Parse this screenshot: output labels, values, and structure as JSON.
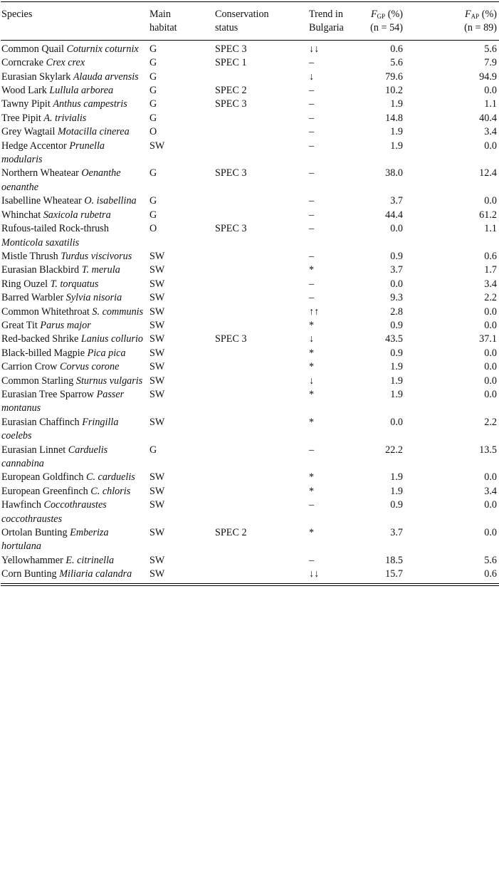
{
  "table": {
    "header": {
      "species": "Species",
      "habitat": [
        "Main",
        "habitat"
      ],
      "status": [
        "Conservation",
        "status"
      ],
      "trend": [
        "Trend in",
        "Bulgaria"
      ],
      "fgp": {
        "symbol": "F",
        "subscript": "GP",
        "unit": "(%)",
        "sample": "(n = 54)"
      },
      "fap": {
        "symbol": "F",
        "subscript": "AP",
        "unit": "(%)",
        "sample": "(n = 89)"
      }
    },
    "rows": [
      {
        "common": "Common Quail",
        "latin": "Coturnix coturnix",
        "habitat": "G",
        "status": "SPEC 3",
        "trend": "↓↓",
        "fgp": "0.6",
        "fap": "5.6"
      },
      {
        "common": "Corncrake",
        "latin": "Crex crex",
        "habitat": "G",
        "status": "SPEC 1",
        "trend": "–",
        "fgp": "5.6",
        "fap": "7.9"
      },
      {
        "common": "Eurasian Skylark",
        "latin": "Alauda arvensis",
        "habitat": "G",
        "status": null,
        "trend": "↓",
        "fgp": "79.6",
        "fap": "94.9"
      },
      {
        "common": "Wood Lark",
        "latin": "Lullula arborea",
        "habitat": "G",
        "status": "SPEC 2",
        "trend": "–",
        "fgp": "10.2",
        "fap": "0.0"
      },
      {
        "common": "Tawny Pipit",
        "latin": "Anthus campestris",
        "habitat": "G",
        "status": "SPEC 3",
        "trend": "–",
        "fgp": "1.9",
        "fap": "1.1"
      },
      {
        "common": "Tree Pipit",
        "latin": "A. trivialis",
        "habitat": "G",
        "status": null,
        "trend": "–",
        "fgp": "14.8",
        "fap": "40.4"
      },
      {
        "common": "Grey Wagtail",
        "latin": "Motacilla cinerea",
        "habitat": "O",
        "status": null,
        "trend": "–",
        "fgp": "1.9",
        "fap": "3.4"
      },
      {
        "common": "Hedge Accentor",
        "latin": "Prunella modularis",
        "habitat": "SW",
        "status": null,
        "trend": "–",
        "fgp": "1.9",
        "fap": "0.0"
      },
      {
        "common": "Northern Wheatear",
        "latin": "Oenanthe oenanthe",
        "habitat": "G",
        "status": "SPEC 3",
        "trend": "–",
        "fgp": "38.0",
        "fap": "12.4"
      },
      {
        "common": "Isabelline Wheatear",
        "latin": "O. isabellina",
        "habitat": "G",
        "status": null,
        "trend": "–",
        "fgp": "3.7",
        "fap": "0.0"
      },
      {
        "common": "Whinchat",
        "latin": "Saxicola rubetra",
        "habitat": "G",
        "status": null,
        "trend": "–",
        "fgp": "44.4",
        "fap": "61.2"
      },
      {
        "common": "Rufous-tailed Rock-thrush",
        "latin": "Monticola saxatilis",
        "habitat": "O",
        "status": "SPEC 3",
        "trend": "–",
        "fgp": "0.0",
        "fap": "1.1"
      },
      {
        "common": "Mistle Thrush",
        "latin": "Turdus viscivorus",
        "habitat": "SW",
        "status": null,
        "trend": "–",
        "fgp": "0.9",
        "fap": "0.6"
      },
      {
        "common": "Eurasian Blackbird",
        "latin": "T. merula",
        "habitat": "SW",
        "status": null,
        "trend": "*",
        "fgp": "3.7",
        "fap": "1.7"
      },
      {
        "common": "Ring Ouzel",
        "latin": "T. torquatus",
        "habitat": "SW",
        "status": null,
        "trend": "–",
        "fgp": "0.0",
        "fap": "3.4"
      },
      {
        "common": "Barred Warbler",
        "latin": "Sylvia nisoria",
        "habitat": "SW",
        "status": null,
        "trend": "–",
        "fgp": "9.3",
        "fap": "2.2"
      },
      {
        "common": "Common Whitethroat",
        "latin": "S. communis",
        "habitat": "SW",
        "status": null,
        "trend": "↑↑",
        "fgp": "2.8",
        "fap": "0.0"
      },
      {
        "common": "Great Tit",
        "latin": "Parus major",
        "habitat": "SW",
        "status": null,
        "trend": "*",
        "fgp": "0.9",
        "fap": "0.0"
      },
      {
        "common": "Red-backed Shrike",
        "latin": "Lanius collurio",
        "habitat": "SW",
        "status": "SPEC 3",
        "trend": "↓",
        "fgp": "43.5",
        "fap": "37.1"
      },
      {
        "common": "Black-billed Magpie",
        "latin": "Pica pica",
        "habitat": "SW",
        "status": null,
        "trend": "*",
        "fgp": "0.9",
        "fap": "0.0"
      },
      {
        "common": "Carrion Crow",
        "latin": "Corvus corone",
        "habitat": "SW",
        "status": null,
        "trend": "*",
        "fgp": "1.9",
        "fap": "0.0"
      },
      {
        "common": "Common Starling",
        "latin": "Sturnus vulgaris",
        "habitat": "SW",
        "status": null,
        "trend": "↓",
        "fgp": "1.9",
        "fap": "0.0"
      },
      {
        "common": "Eurasian Tree Sparrow",
        "latin": "Passer montanus",
        "habitat": "SW",
        "status": null,
        "trend": "*",
        "fgp": "1.9",
        "fap": "0.0"
      },
      {
        "common": "Eurasian Chaffinch",
        "latin": "Fringilla coelebs",
        "habitat": "SW",
        "status": null,
        "trend": "*",
        "fgp": "0.0",
        "fap": "2.2"
      },
      {
        "common": "Eurasian Linnet",
        "latin": "Carduelis cannabina",
        "habitat": "G",
        "status": null,
        "trend": "–",
        "fgp": "22.2",
        "fap": "13.5"
      },
      {
        "common": "European Goldfinch",
        "latin": "C. carduelis",
        "habitat": "SW",
        "status": null,
        "trend": "*",
        "fgp": "1.9",
        "fap": "0.0"
      },
      {
        "common": "European Greenfinch",
        "latin": "C. chloris",
        "habitat": "SW",
        "status": null,
        "trend": "*",
        "fgp": "1.9",
        "fap": "3.4"
      },
      {
        "common": "Hawfinch",
        "latin": "Coccothraustes coccothraustes",
        "habitat": "SW",
        "status": null,
        "trend": "–",
        "fgp": "0.9",
        "fap": "0.0"
      },
      {
        "common": "Ortolan Bunting",
        "latin": "Emberiza hortulana",
        "habitat": "SW",
        "status": "SPEC 2",
        "trend": "*",
        "fgp": "3.7",
        "fap": "0.0"
      },
      {
        "common": "Yellowhammer",
        "latin": "E. citrinella",
        "habitat": "SW",
        "status": null,
        "trend": "–",
        "fgp": "18.5",
        "fap": "5.6"
      },
      {
        "common": "Corn Bunting",
        "latin": "Miliaria calandra",
        "habitat": "SW",
        "status": null,
        "trend": "↓↓",
        "fgp": "15.7",
        "fap": "0.6"
      }
    ]
  }
}
